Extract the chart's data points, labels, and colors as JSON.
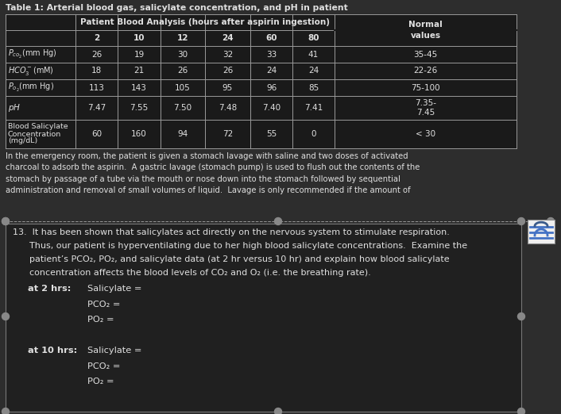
{
  "title": "Table 1: Arterial blood gas, salicylate concentration, and pH in patient",
  "bg_color": "#2d2d2d",
  "table_bg": "#1e1e1e",
  "text_color": "#e0e0e0",
  "line_color": "#999999",
  "dot_color": "#888888",
  "box_bg": "#252525",
  "box_border": "#666666",
  "icon_bg": "#4a6fa5",
  "table_header_main": "Patient Blood Analysis (hours after aspirin ingestion)",
  "hours": [
    "2",
    "10",
    "12",
    "24",
    "60",
    "80"
  ],
  "normal_header": "Normal\nvalues",
  "row_label_pco2": "$P_{co_2}$(mm Hg)",
  "row_label_hco3": "$HCO_3^-$(mM)",
  "row_label_po2": "$P_{o_2}$(mm Hg)",
  "row_label_ph": "pH",
  "row_label_sal": [
    "Blood Salicylate",
    "Concentration",
    "(mg/dL)"
  ],
  "data_pco2": [
    "26",
    "19",
    "30",
    "32",
    "33",
    "41"
  ],
  "data_hco3": [
    "18",
    "21",
    "26",
    "26",
    "24",
    "24"
  ],
  "data_po2": [
    "113",
    "143",
    "105",
    "95",
    "96",
    "85"
  ],
  "data_ph": [
    "7.47",
    "7.55",
    "7.50",
    "7.48",
    "7.40",
    "7.41"
  ],
  "data_sal": [
    "60",
    "160",
    "94",
    "72",
    "55",
    "0"
  ],
  "normal_pco2": "35-45",
  "normal_hco3": "22-26",
  "normal_po2": "75-100",
  "normal_ph": "7.35-\n7.45",
  "normal_sal": "< 30",
  "paragraph": "In the emergency room, the patient is given a stomach lavage with saline and two doses of activated\ncharcoal to adsorb the aspirin.  A gastric lavage (stomach pump) is used to flush out the contents of the\nstomach by passage of a tube via the mouth or nose down into the stomach followed by sequential\nadministration and removal of small volumes of liquid.  Lavage is only recommended if the amount of",
  "q13_line1": "13.  It has been shown that salicylates act directly on the nervous system to stimulate respiration.",
  "q13_line2": "      Thus, our patient is hyperventilating due to her high blood salicylate concentrations.  Examine the",
  "q13_line3": "      patient’s PCO₂, PO₂, and salicylate data (at 2 hr versus 10 hr) and explain how blood salicylate",
  "q13_line4": "      concentration affects the blood levels of CO₂ and O₂ (i.e. the breathing rate).",
  "label_2hr": "at 2 hrs:",
  "label_10hr": "at 10 hrs:",
  "sal_label": "Salicylate =",
  "pco2_label": "PCO₂ =",
  "po2_label": "PO₂ ="
}
